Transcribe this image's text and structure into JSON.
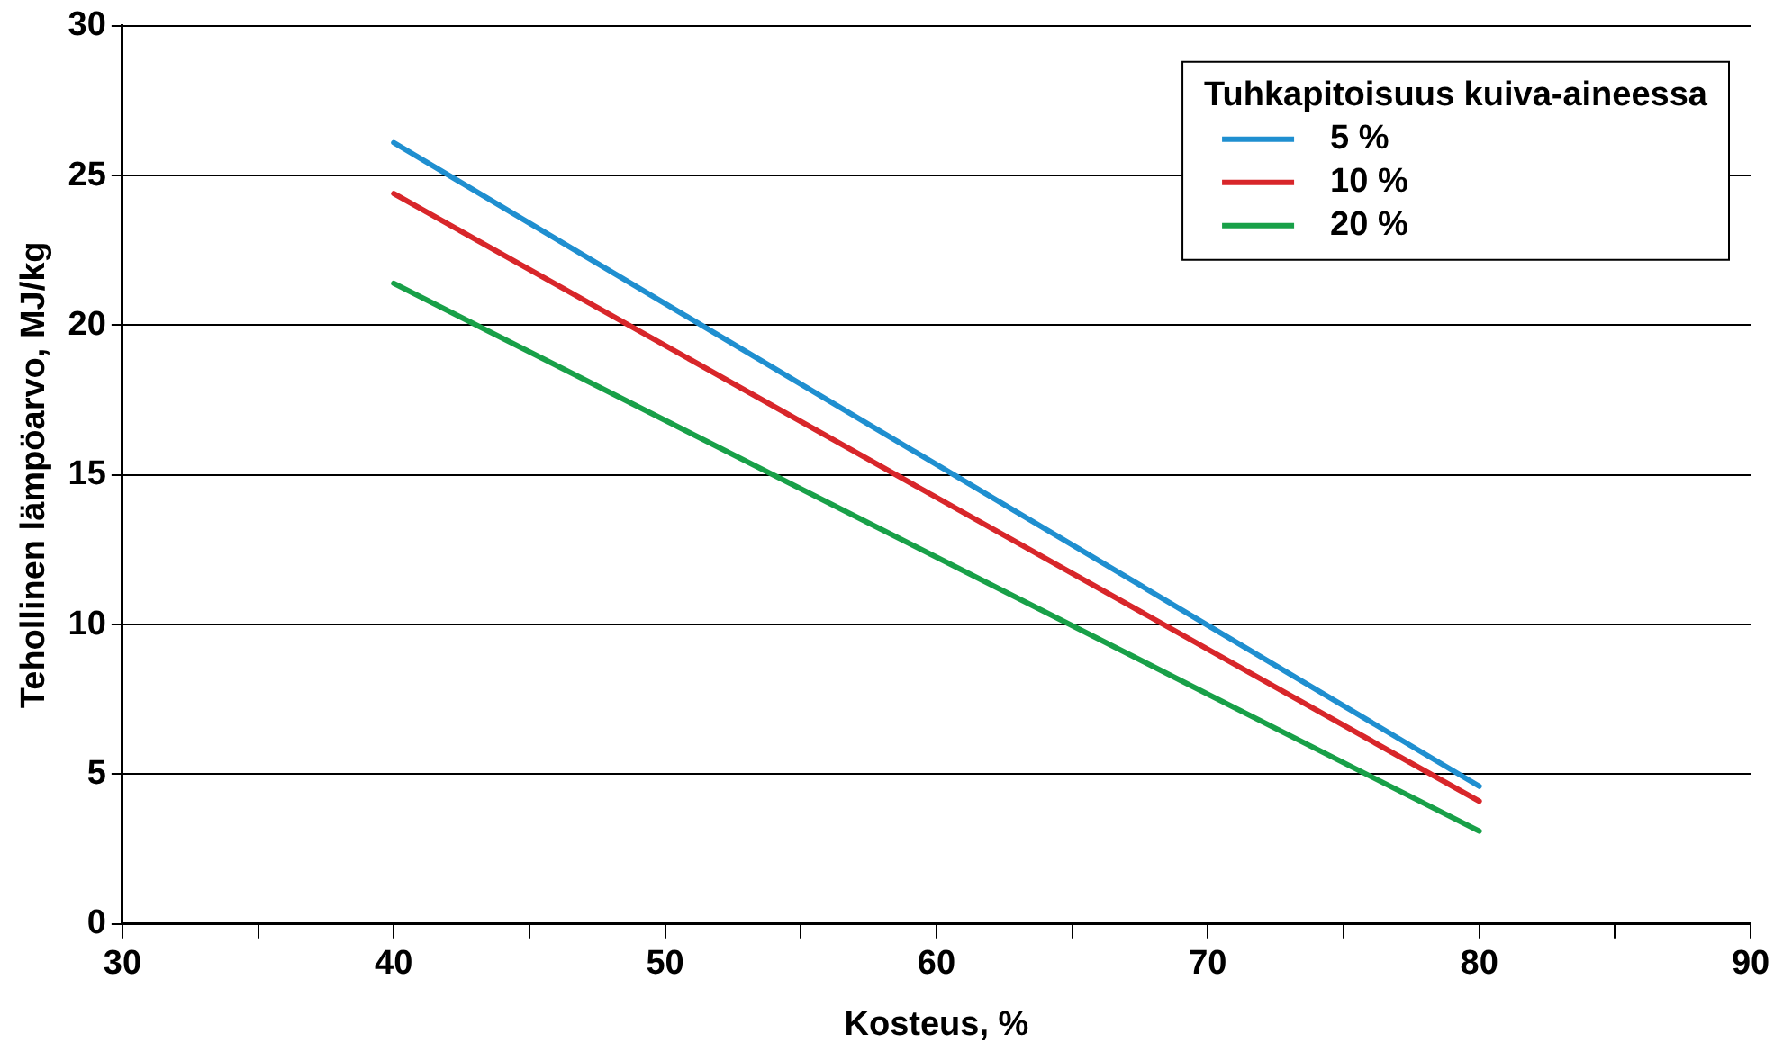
{
  "chart_data": {
    "type": "line",
    "xlabel": "Kosteus, %",
    "ylabel": "Tehollinen lämpöarvo, MJ/kg",
    "legend_title": "Tuhkapitoisuus kuiva-aineessa",
    "x": [
      40,
      80
    ],
    "series": [
      {
        "name": "5 %",
        "color": "#1f8fd0",
        "values": [
          26.1,
          4.6
        ]
      },
      {
        "name": "10 %",
        "color": "#d8262a",
        "values": [
          24.4,
          4.1
        ]
      },
      {
        "name": "20 %",
        "color": "#18a048",
        "values": [
          21.4,
          3.1
        ]
      }
    ],
    "xlim": [
      30,
      90
    ],
    "xticks": [
      30,
      {
        "value": 35,
        "label": null
      },
      40,
      {
        "value": 45,
        "label": null
      },
      50,
      {
        "value": 55,
        "label": null
      },
      60,
      {
        "value": 65,
        "label": null
      },
      70,
      {
        "value": 75,
        "label": null
      },
      80,
      {
        "value": 85,
        "label": null
      },
      90
    ],
    "ylim": [
      0,
      30
    ],
    "yticks": [
      0,
      5,
      10,
      15,
      20,
      25,
      30
    ],
    "grid": "y",
    "legend": "top right",
    "marker": "none",
    "line_style": "solid"
  }
}
